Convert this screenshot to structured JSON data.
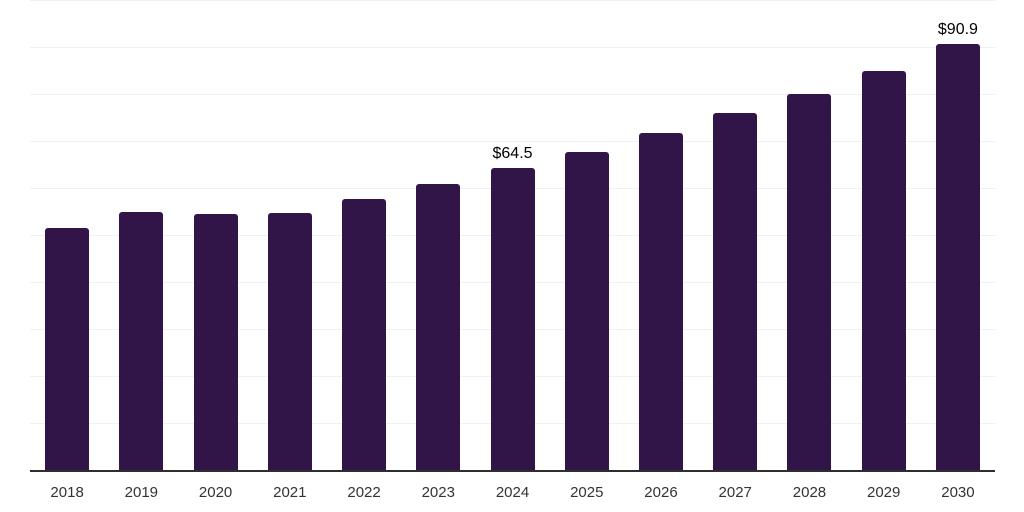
{
  "chart_data": {
    "type": "bar",
    "categories": [
      "2018",
      "2019",
      "2020",
      "2021",
      "2022",
      "2023",
      "2024",
      "2025",
      "2026",
      "2027",
      "2028",
      "2029",
      "2030"
    ],
    "values": [
      51.7,
      55.1,
      54.7,
      55.0,
      57.8,
      61.1,
      64.5,
      67.9,
      72.0,
      76.1,
      80.3,
      85.2,
      90.9
    ],
    "value_labels": [
      "",
      "",
      "",
      "",
      "",
      "",
      "$64.5",
      "",
      "",
      "",
      "",
      "",
      "$90.9"
    ],
    "title": "",
    "xlabel": "",
    "ylabel": "",
    "ylim": [
      0,
      100
    ],
    "grid_step": 10,
    "grid": "horizontal",
    "legend": "none",
    "colors": {
      "bar": "#311549",
      "axis": "#2e2e2e",
      "gridline": "#f1f1f1",
      "tick_label": "#333333",
      "value_label": "#000000",
      "background": "#ffffff"
    }
  }
}
